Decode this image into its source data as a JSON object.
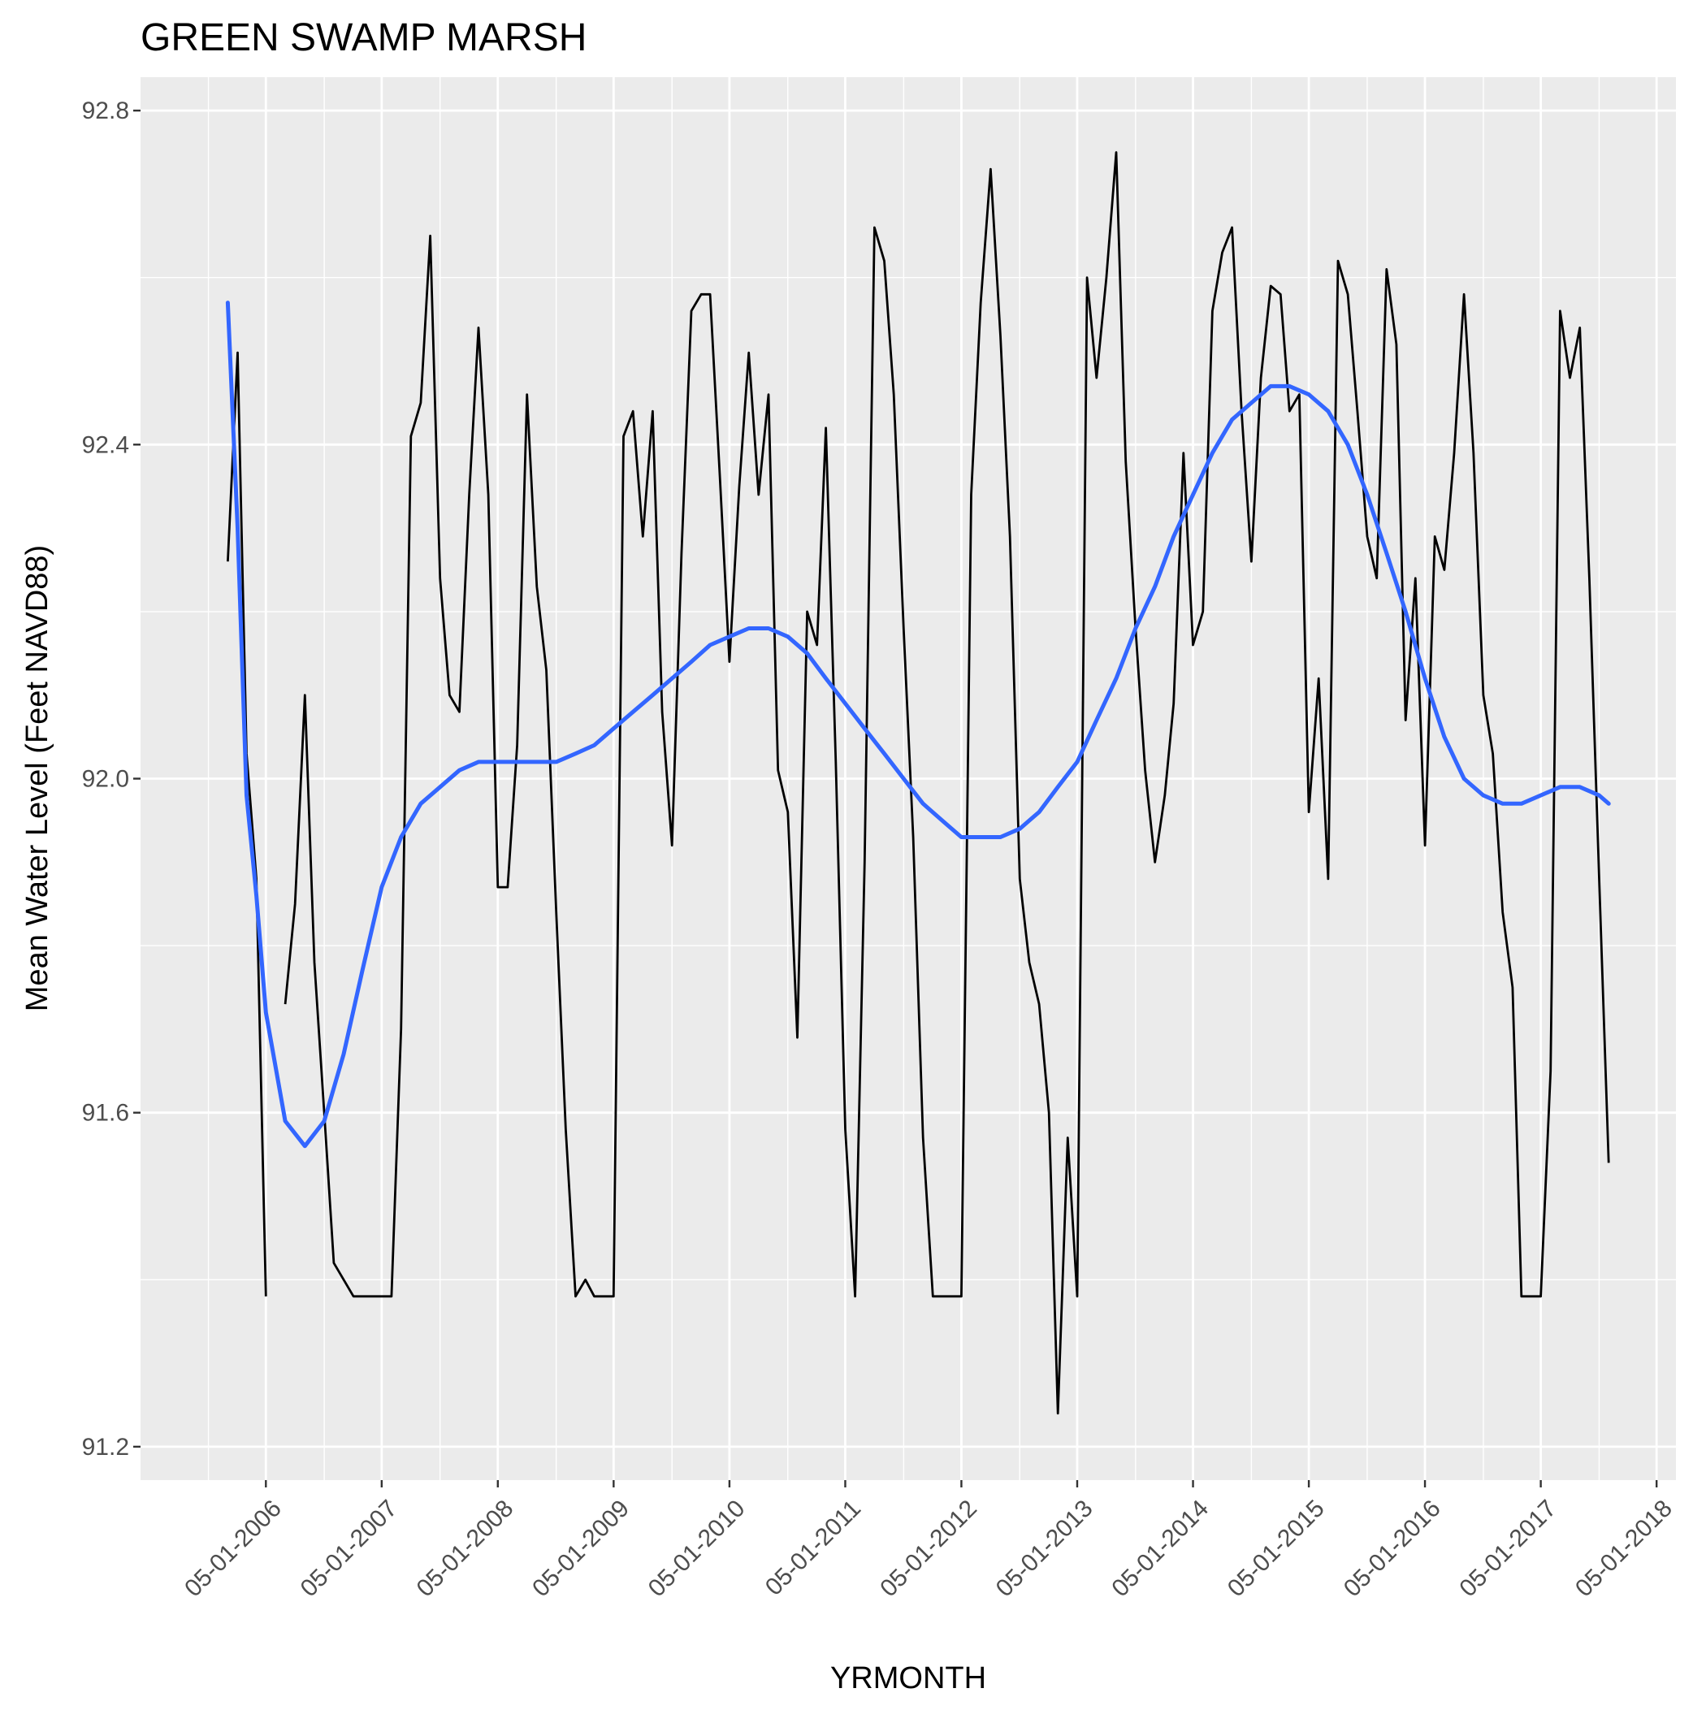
{
  "chart_data": {
    "type": "line",
    "title": "GREEN SWAMP MARSH",
    "xlabel": "YRMONTH",
    "ylabel": "Mean Water Level (Feet NAVD88)",
    "x_axis": {
      "type": "date",
      "range": [
        "2005-04-01",
        "2018-07-01"
      ],
      "ticks": [
        "2006-05-01",
        "2007-05-01",
        "2008-05-01",
        "2009-05-01",
        "2010-05-01",
        "2011-05-01",
        "2012-05-01",
        "2013-05-01",
        "2014-05-01",
        "2015-05-01",
        "2016-05-01",
        "2017-05-01",
        "2018-05-01"
      ],
      "tick_labels": [
        "05-01-2006",
        "05-01-2007",
        "05-01-2008",
        "05-01-2009",
        "05-01-2010",
        "05-01-2011",
        "05-01-2012",
        "05-01-2013",
        "05-01-2014",
        "05-01-2015",
        "05-01-2016",
        "05-01-2017",
        "05-01-2018"
      ],
      "minor_ticks": [
        "2005-11-01",
        "2006-11-01",
        "2007-11-01",
        "2008-11-01",
        "2009-11-01",
        "2010-11-01",
        "2011-11-01",
        "2012-11-01",
        "2013-11-01",
        "2014-11-01",
        "2015-11-01",
        "2016-11-01",
        "2017-11-01"
      ]
    },
    "y_axis": {
      "range": [
        91.16,
        92.84
      ],
      "ticks": [
        91.2,
        91.6,
        92.0,
        92.4,
        92.8
      ],
      "tick_labels": [
        "91.2",
        "91.6",
        "92.0",
        "92.4",
        "92.8"
      ],
      "minor_ticks": [
        91.4,
        91.8,
        92.2,
        92.6
      ]
    },
    "grid": true,
    "colors": {
      "panel": "#ebebeb",
      "grid": "#ffffff",
      "observed": "#000000",
      "smooth": "#3366ff"
    },
    "series": [
      {
        "style": "black-line",
        "segments": [
          [
            [
              "2006-01-01",
              92.26
            ],
            [
              "2006-02-01",
              92.51
            ],
            [
              "2006-03-01",
              92.03
            ],
            [
              "2006-04-01",
              91.88
            ],
            [
              "2006-05-01",
              91.38
            ]
          ],
          [
            [
              "2006-07-01",
              91.73
            ],
            [
              "2006-08-01",
              91.85
            ],
            [
              "2006-09-01",
              92.1
            ],
            [
              "2006-10-01",
              91.78
            ],
            [
              "2006-11-01",
              91.6
            ],
            [
              "2006-12-01",
              91.42
            ],
            [
              "2007-02-01",
              91.38
            ],
            [
              "2007-03-01",
              91.38
            ],
            [
              "2007-04-01",
              91.38
            ],
            [
              "2007-05-01",
              91.38
            ],
            [
              "2007-06-01",
              91.38
            ],
            [
              "2007-07-01",
              91.7
            ],
            [
              "2007-08-01",
              92.41
            ],
            [
              "2007-09-01",
              92.45
            ],
            [
              "2007-10-01",
              92.65
            ],
            [
              "2007-11-01",
              92.24
            ],
            [
              "2007-12-01",
              92.1
            ],
            [
              "2008-01-01",
              92.08
            ],
            [
              "2008-02-01",
              92.34
            ],
            [
              "2008-03-01",
              92.54
            ],
            [
              "2008-04-01",
              92.34
            ],
            [
              "2008-05-01",
              91.87
            ],
            [
              "2008-06-01",
              91.87
            ],
            [
              "2008-07-01",
              92.04
            ],
            [
              "2008-08-01",
              92.46
            ],
            [
              "2008-09-01",
              92.23
            ],
            [
              "2008-10-01",
              92.13
            ],
            [
              "2008-11-01",
              91.84
            ],
            [
              "2008-12-01",
              91.58
            ],
            [
              "2009-01-01",
              91.38
            ],
            [
              "2009-02-01",
              91.4
            ],
            [
              "2009-03-01",
              91.38
            ],
            [
              "2009-04-01",
              91.38
            ],
            [
              "2009-05-01",
              91.38
            ],
            [
              "2009-06-01",
              92.41
            ],
            [
              "2009-07-01",
              92.44
            ],
            [
              "2009-08-01",
              92.29
            ],
            [
              "2009-09-01",
              92.44
            ],
            [
              "2009-10-01",
              92.08
            ],
            [
              "2009-11-01",
              91.92
            ],
            [
              "2009-12-01",
              92.27
            ],
            [
              "2010-01-01",
              92.56
            ],
            [
              "2010-02-01",
              92.58
            ],
            [
              "2010-03-01",
              92.58
            ],
            [
              "2010-04-01",
              92.36
            ],
            [
              "2010-05-01",
              92.14
            ],
            [
              "2010-06-01",
              92.35
            ],
            [
              "2010-07-01",
              92.51
            ],
            [
              "2010-08-01",
              92.34
            ],
            [
              "2010-09-01",
              92.46
            ],
            [
              "2010-10-01",
              92.01
            ],
            [
              "2010-11-01",
              91.96
            ],
            [
              "2010-12-01",
              91.69
            ],
            [
              "2011-01-01",
              92.2
            ],
            [
              "2011-02-01",
              92.16
            ],
            [
              "2011-03-01",
              92.42
            ],
            [
              "2011-04-01",
              92.02
            ],
            [
              "2011-05-01",
              91.58
            ],
            [
              "2011-06-01",
              91.38
            ],
            [
              "2011-07-01",
              91.9
            ],
            [
              "2011-08-01",
              92.66
            ],
            [
              "2011-09-01",
              92.62
            ],
            [
              "2011-10-01",
              92.46
            ],
            [
              "2011-11-01",
              92.18
            ],
            [
              "2011-12-01",
              91.93
            ],
            [
              "2012-01-01",
              91.57
            ],
            [
              "2012-02-01",
              91.38
            ],
            [
              "2012-03-01",
              91.38
            ],
            [
              "2012-04-01",
              91.38
            ],
            [
              "2012-05-01",
              91.38
            ],
            [
              "2012-06-01",
              92.34
            ],
            [
              "2012-07-01",
              92.57
            ],
            [
              "2012-08-01",
              92.73
            ],
            [
              "2012-09-01",
              92.53
            ],
            [
              "2012-10-01",
              92.29
            ],
            [
              "2012-11-01",
              91.88
            ],
            [
              "2012-12-01",
              91.78
            ],
            [
              "2013-01-01",
              91.73
            ],
            [
              "2013-02-01",
              91.6
            ],
            [
              "2013-03-01",
              91.24
            ],
            [
              "2013-04-01",
              91.57
            ],
            [
              "2013-05-01",
              91.38
            ],
            [
              "2013-06-01",
              92.6
            ],
            [
              "2013-07-01",
              92.48
            ],
            [
              "2013-08-01",
              92.6
            ],
            [
              "2013-09-01",
              92.75
            ],
            [
              "2013-10-01",
              92.38
            ],
            [
              "2013-11-01",
              92.18
            ],
            [
              "2013-12-01",
              92.01
            ],
            [
              "2014-01-01",
              91.9
            ],
            [
              "2014-02-01",
              91.98
            ],
            [
              "2014-03-01",
              92.09
            ],
            [
              "2014-04-01",
              92.39
            ],
            [
              "2014-05-01",
              92.16
            ],
            [
              "2014-06-01",
              92.2
            ],
            [
              "2014-07-01",
              92.56
            ],
            [
              "2014-08-01",
              92.63
            ],
            [
              "2014-09-01",
              92.66
            ],
            [
              "2014-10-01",
              92.44
            ],
            [
              "2014-11-01",
              92.26
            ],
            [
              "2014-12-01",
              92.48
            ],
            [
              "2015-01-01",
              92.59
            ],
            [
              "2015-02-01",
              92.58
            ],
            [
              "2015-03-01",
              92.44
            ],
            [
              "2015-04-01",
              92.46
            ],
            [
              "2015-05-01",
              91.96
            ],
            [
              "2015-06-01",
              92.12
            ],
            [
              "2015-07-01",
              91.88
            ],
            [
              "2015-08-01",
              92.62
            ],
            [
              "2015-09-01",
              92.58
            ],
            [
              "2015-10-01",
              92.44
            ],
            [
              "2015-11-01",
              92.29
            ],
            [
              "2015-12-01",
              92.24
            ],
            [
              "2016-01-01",
              92.61
            ],
            [
              "2016-02-01",
              92.52
            ],
            [
              "2016-03-01",
              92.07
            ],
            [
              "2016-04-01",
              92.24
            ],
            [
              "2016-05-01",
              91.92
            ],
            [
              "2016-06-01",
              92.29
            ],
            [
              "2016-07-01",
              92.25
            ],
            [
              "2016-08-01",
              92.39
            ],
            [
              "2016-09-01",
              92.58
            ],
            [
              "2016-10-01",
              92.39
            ],
            [
              "2016-11-01",
              92.1
            ],
            [
              "2016-12-01",
              92.03
            ],
            [
              "2017-01-01",
              91.84
            ],
            [
              "2017-02-01",
              91.75
            ],
            [
              "2017-03-01",
              91.38
            ],
            [
              "2017-04-01",
              91.38
            ],
            [
              "2017-05-01",
              91.38
            ],
            [
              "2017-06-01",
              91.65
            ],
            [
              "2017-07-01",
              92.56
            ],
            [
              "2017-08-01",
              92.48
            ],
            [
              "2017-09-01",
              92.54
            ],
            [
              "2017-10-01",
              92.24
            ],
            [
              "2017-11-01",
              91.88
            ],
            [
              "2017-12-01",
              91.54
            ]
          ]
        ]
      },
      {
        "style": "blue-smooth",
        "points": [
          [
            "2006-01-01",
            92.57
          ],
          [
            "2006-02-01",
            92.3
          ],
          [
            "2006-03-01",
            91.98
          ],
          [
            "2006-04-01",
            91.86
          ],
          [
            "2006-05-01",
            91.72
          ],
          [
            "2006-07-01",
            91.59
          ],
          [
            "2006-09-01",
            91.56
          ],
          [
            "2006-11-01",
            91.59
          ],
          [
            "2007-01-01",
            91.67
          ],
          [
            "2007-03-01",
            91.77
          ],
          [
            "2007-05-01",
            91.87
          ],
          [
            "2007-07-01",
            91.93
          ],
          [
            "2007-09-01",
            91.97
          ],
          [
            "2007-11-01",
            91.99
          ],
          [
            "2008-01-01",
            92.01
          ],
          [
            "2008-03-01",
            92.02
          ],
          [
            "2008-05-01",
            92.02
          ],
          [
            "2008-07-01",
            92.02
          ],
          [
            "2008-09-01",
            92.02
          ],
          [
            "2008-11-01",
            92.02
          ],
          [
            "2009-01-01",
            92.03
          ],
          [
            "2009-03-01",
            92.04
          ],
          [
            "2009-05-01",
            92.06
          ],
          [
            "2009-07-01",
            92.08
          ],
          [
            "2009-09-01",
            92.1
          ],
          [
            "2009-11-01",
            92.12
          ],
          [
            "2010-01-01",
            92.14
          ],
          [
            "2010-03-01",
            92.16
          ],
          [
            "2010-05-01",
            92.17
          ],
          [
            "2010-07-01",
            92.18
          ],
          [
            "2010-09-01",
            92.18
          ],
          [
            "2010-11-01",
            92.17
          ],
          [
            "2011-01-01",
            92.15
          ],
          [
            "2011-03-01",
            92.12
          ],
          [
            "2011-05-01",
            92.09
          ],
          [
            "2011-07-01",
            92.06
          ],
          [
            "2011-09-01",
            92.03
          ],
          [
            "2011-11-01",
            92.0
          ],
          [
            "2012-01-01",
            91.97
          ],
          [
            "2012-03-01",
            91.95
          ],
          [
            "2012-05-01",
            91.93
          ],
          [
            "2012-07-01",
            91.93
          ],
          [
            "2012-09-01",
            91.93
          ],
          [
            "2012-11-01",
            91.94
          ],
          [
            "2013-01-01",
            91.96
          ],
          [
            "2013-03-01",
            91.99
          ],
          [
            "2013-05-01",
            92.02
          ],
          [
            "2013-07-01",
            92.07
          ],
          [
            "2013-09-01",
            92.12
          ],
          [
            "2013-11-01",
            92.18
          ],
          [
            "2014-01-01",
            92.23
          ],
          [
            "2014-03-01",
            92.29
          ],
          [
            "2014-05-01",
            92.34
          ],
          [
            "2014-07-01",
            92.39
          ],
          [
            "2014-09-01",
            92.43
          ],
          [
            "2014-11-01",
            92.45
          ],
          [
            "2015-01-01",
            92.47
          ],
          [
            "2015-03-01",
            92.47
          ],
          [
            "2015-05-01",
            92.46
          ],
          [
            "2015-07-01",
            92.44
          ],
          [
            "2015-09-01",
            92.4
          ],
          [
            "2015-11-01",
            92.34
          ],
          [
            "2016-01-01",
            92.27
          ],
          [
            "2016-03-01",
            92.2
          ],
          [
            "2016-05-01",
            92.12
          ],
          [
            "2016-07-01",
            92.05
          ],
          [
            "2016-09-01",
            92.0
          ],
          [
            "2016-11-01",
            91.98
          ],
          [
            "2017-01-01",
            91.97
          ],
          [
            "2017-03-01",
            91.97
          ],
          [
            "2017-05-01",
            91.98
          ],
          [
            "2017-07-01",
            91.99
          ],
          [
            "2017-09-01",
            91.99
          ],
          [
            "2017-11-01",
            91.98
          ],
          [
            "2017-12-01",
            91.97
          ]
        ]
      }
    ]
  }
}
